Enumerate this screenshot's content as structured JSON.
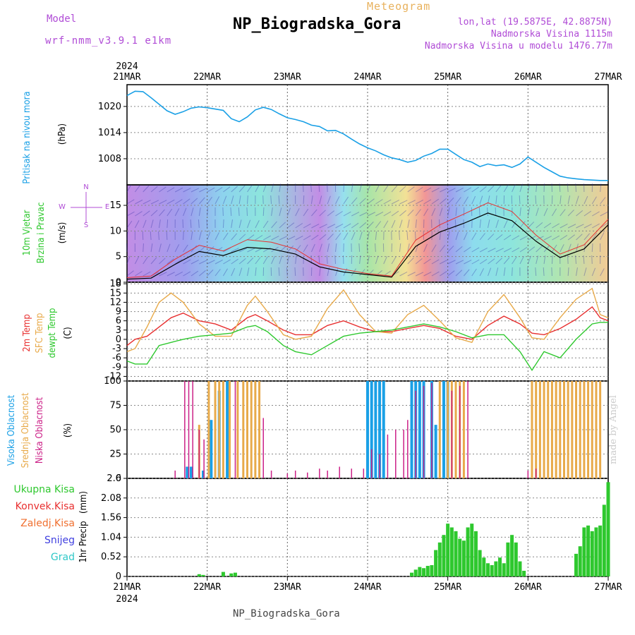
{
  "header": {
    "model_label": "Model",
    "model_name": "wrf-nmm_v3.9.1 e1km",
    "chart_type": "Meteogram",
    "station": "NP_Biogradska_Gora",
    "coords": "lon,lat (19.5875E, 42.8875N)",
    "altitude": "Nadmorska Visina 1115m",
    "model_altitude": "Nadmorska Visina u modelu 1476.77m",
    "footer": "NP_Biogradska_Gora",
    "credit": "made by Angel",
    "year": "2024"
  },
  "chart_data": [
    {
      "type": "line",
      "panel": "pressure",
      "ylabel": "Pritisak na nivou mora",
      "unit": "(hPa)",
      "x_ticks": [
        "21MAR",
        "22MAR",
        "23MAR",
        "24MAR",
        "25MAR",
        "26MAR",
        "27MAR"
      ],
      "yticks": [
        1008,
        1014,
        1020
      ],
      "ylim": [
        1002,
        1025
      ],
      "color": "#1aa0e6",
      "x": [
        0,
        0.1,
        0.2,
        0.3,
        0.5,
        0.6,
        0.7,
        0.8,
        0.9,
        1.0,
        1.2,
        1.3,
        1.4,
        1.5,
        1.6,
        1.7,
        1.8,
        1.9,
        2.0,
        2.1,
        2.2,
        2.3,
        2.4,
        2.5,
        2.6,
        2.7,
        2.8,
        2.9,
        3.0,
        3.1,
        3.2,
        3.3,
        3.4,
        3.5,
        3.6,
        3.7,
        3.8,
        3.9,
        4.0,
        4.1,
        4.2,
        4.3,
        4.4,
        4.5,
        4.6,
        4.7,
        4.8,
        4.9,
        5.0,
        5.1,
        5.2,
        5.3,
        5.4,
        5.5,
        5.6,
        5.7,
        5.8,
        5.9,
        6.0
      ],
      "y": [
        1022.5,
        1023.5,
        1023.4,
        1022.0,
        1019.0,
        1018.2,
        1018.8,
        1019.6,
        1019.9,
        1019.7,
        1019.1,
        1017.2,
        1016.5,
        1017.6,
        1019.2,
        1019.8,
        1019.3,
        1018.3,
        1017.4,
        1017.0,
        1016.5,
        1015.7,
        1015.4,
        1014.4,
        1014.5,
        1013.7,
        1012.5,
        1011.4,
        1010.5,
        1009.8,
        1008.9,
        1008.2,
        1007.8,
        1007.2,
        1007.6,
        1008.6,
        1009.2,
        1010.2,
        1010.2,
        1009.0,
        1007.8,
        1007.2,
        1006.2,
        1006.8,
        1006.4,
        1006.6,
        1006.0,
        1006.8,
        1008.4,
        1007.2,
        1006.0,
        1005.0,
        1004.0,
        1003.6,
        1003.4,
        1003.2,
        1003.1,
        1003.0,
        1003.0
      ]
    },
    {
      "type": "line",
      "panel": "wind",
      "ylabel": "10m Vjetar Brzina i Pravac",
      "unit": "(m/s)",
      "yticks": [
        0,
        5,
        10,
        15
      ],
      "ylim": [
        0,
        19
      ],
      "compass": {
        "n": "N",
        "s": "S",
        "e": "E",
        "w": "W"
      },
      "series": [
        {
          "color": "#000000",
          "x": [
            0,
            0.3,
            0.6,
            0.9,
            1.2,
            1.5,
            1.8,
            2.1,
            2.4,
            2.7,
            3.0,
            3.3,
            3.6,
            3.9,
            4.2,
            4.5,
            4.8,
            5.1,
            5.4,
            5.7,
            6.0
          ],
          "y": [
            0.6,
            0.8,
            3.5,
            6.0,
            5.2,
            6.8,
            6.5,
            5.5,
            3.0,
            2.0,
            1.5,
            1.0,
            7.0,
            9.8,
            11.5,
            13.5,
            12.0,
            8.0,
            4.8,
            6.5,
            11.2
          ]
        },
        {
          "color": "#e83030",
          "x": [
            0,
            0.3,
            0.6,
            0.9,
            1.2,
            1.5,
            1.8,
            2.1,
            2.4,
            2.7,
            3.0,
            3.3,
            3.6,
            3.9,
            4.2,
            4.5,
            4.8,
            5.1,
            5.4,
            5.7,
            6.0
          ],
          "y": [
            0.9,
            1.2,
            4.5,
            7.2,
            6.1,
            8.3,
            7.8,
            6.5,
            3.6,
            2.5,
            1.7,
            1.2,
            8.2,
            11.2,
            13.3,
            15.5,
            13.8,
            9.2,
            5.5,
            7.3,
            12.3
          ]
        }
      ]
    },
    {
      "type": "line",
      "panel": "temperature",
      "ylabel_lines": [
        "2m Temp",
        "SFC Temp",
        "dewpt Temp"
      ],
      "unit": "(C)",
      "yticks": [
        -12,
        -9,
        -6,
        -3,
        0,
        3,
        6,
        9,
        12,
        15,
        18
      ],
      "ylim": [
        -13.5,
        18.5
      ],
      "series": [
        {
          "name": "2m Temp",
          "color": "#e83030",
          "x": [
            0,
            0.1,
            0.25,
            0.4,
            0.55,
            0.7,
            0.9,
            1.1,
            1.3,
            1.5,
            1.6,
            1.75,
            1.95,
            2.1,
            2.3,
            2.5,
            2.7,
            2.9,
            3.1,
            3.3,
            3.5,
            3.7,
            3.9,
            4.1,
            4.3,
            4.5,
            4.7,
            4.9,
            5.05,
            5.2,
            5.4,
            5.6,
            5.8,
            5.9,
            6.0
          ],
          "y": [
            -2,
            0,
            1,
            4,
            7,
            8.5,
            6,
            5,
            3,
            7,
            8,
            6,
            3,
            1.5,
            1.5,
            4.5,
            6,
            4,
            2.5,
            2.5,
            3.5,
            4.5,
            3.5,
            1,
            0,
            4.5,
            7.5,
            5,
            2,
            1.5,
            3.5,
            6.5,
            10.5,
            7,
            6
          ]
        },
        {
          "name": "SFC Temp",
          "color": "#e8aa4a",
          "x": [
            0,
            0.1,
            0.25,
            0.4,
            0.55,
            0.7,
            0.9,
            1.1,
            1.3,
            1.5,
            1.6,
            1.75,
            1.95,
            2.1,
            2.3,
            2.5,
            2.7,
            2.9,
            3.1,
            3.3,
            3.5,
            3.7,
            3.9,
            4.1,
            4.3,
            4.5,
            4.7,
            4.9,
            5.05,
            5.2,
            5.4,
            5.6,
            5.8,
            5.9,
            6.0
          ],
          "y": [
            -4,
            -3,
            4,
            12,
            15,
            12,
            5,
            1,
            1,
            11,
            14,
            9,
            1.5,
            0,
            1,
            10,
            16,
            8,
            2.5,
            2,
            8,
            11,
            6,
            0.5,
            -1,
            9,
            14.5,
            7,
            0.5,
            0,
            7,
            13,
            16.5,
            8,
            7
          ]
        },
        {
          "name": "dewpt Temp",
          "color": "#2ec82e",
          "x": [
            0,
            0.1,
            0.25,
            0.4,
            0.55,
            0.7,
            0.9,
            1.1,
            1.3,
            1.5,
            1.6,
            1.75,
            1.95,
            2.1,
            2.3,
            2.5,
            2.7,
            2.9,
            3.1,
            3.3,
            3.5,
            3.7,
            3.9,
            4.1,
            4.3,
            4.5,
            4.7,
            4.9,
            5.05,
            5.2,
            5.4,
            5.6,
            5.8,
            5.9,
            6.0
          ],
          "y": [
            -7,
            -8,
            -8,
            -2,
            -1,
            0,
            1,
            1.5,
            2,
            4,
            4.5,
            2.5,
            -2,
            -4,
            -5,
            -2,
            1,
            2,
            2.5,
            3,
            4,
            5,
            4,
            2.5,
            0.5,
            1.5,
            1.5,
            -4,
            -10,
            -4,
            -6,
            0,
            5,
            5.5,
            5.5
          ]
        }
      ]
    },
    {
      "type": "bar",
      "panel": "cloud",
      "ylabel_lines": [
        "Visoka Oblacnost",
        "Srednja Oblacnost",
        "Niska Oblacnost"
      ],
      "unit": "(%)",
      "yticks": [
        0,
        25,
        50,
        75,
        100
      ],
      "ylim": [
        0,
        100
      ],
      "series": [
        {
          "name": "Visoka Oblacnost",
          "color": "#1aa0e6",
          "x": [
            0.75,
            0.8,
            0.95,
            1.05,
            1.15,
            1.25,
            3.0,
            3.05,
            3.1,
            3.15,
            3.2,
            3.55,
            3.6,
            3.65,
            3.7,
            3.8,
            3.85,
            3.95,
            4.0
          ],
          "values": [
            12,
            12,
            8,
            60,
            90,
            100,
            100,
            100,
            100,
            100,
            100,
            100,
            100,
            100,
            100,
            100,
            55,
            100,
            100
          ]
        },
        {
          "name": "Srednja Oblacnost",
          "color": "#e8aa4a",
          "x": [
            0.9,
            1.02,
            1.1,
            1.15,
            1.2,
            1.28,
            1.38,
            1.45,
            1.5,
            1.55,
            1.6,
            1.65,
            3.9,
            4.0,
            4.05,
            4.1,
            4.15,
            4.2,
            5.05,
            5.1,
            5.15,
            5.2,
            5.25,
            5.3,
            5.35,
            5.4,
            5.45,
            5.5,
            5.55,
            5.6,
            5.65,
            5.7,
            5.75,
            5.8,
            5.85,
            5.9
          ],
          "values": [
            55,
            100,
            100,
            100,
            100,
            100,
            100,
            100,
            100,
            100,
            100,
            100,
            100,
            100,
            100,
            100,
            100,
            100,
            100,
            100,
            100,
            100,
            100,
            100,
            100,
            100,
            100,
            100,
            100,
            100,
            100,
            100,
            100,
            100,
            100,
            100
          ]
        },
        {
          "name": "Niska Oblacnost",
          "color": "#cc2288",
          "x": [
            0.6,
            0.72,
            0.77,
            0.82,
            0.9,
            0.96,
            1.35,
            1.7,
            1.8,
            2.0,
            2.1,
            2.25,
            2.4,
            2.5,
            2.65,
            2.8,
            2.95,
            3.05,
            3.15,
            3.25,
            3.35,
            3.45,
            3.5,
            3.6,
            3.7,
            3.8,
            4.05,
            4.15,
            4.25,
            5.0,
            5.1
          ],
          "values": [
            8,
            100,
            100,
            100,
            50,
            40,
            100,
            62,
            8,
            5,
            8,
            6,
            10,
            8,
            12,
            10,
            10,
            30,
            25,
            45,
            50,
            50,
            60,
            90,
            95,
            98,
            90,
            95,
            100,
            8,
            10
          ]
        }
      ]
    },
    {
      "type": "bar",
      "panel": "precip",
      "ylabel": "1hr Precip",
      "unit": "(mm)",
      "legend": [
        {
          "label": "Ukupna Kisa",
          "color": "#2ec82e"
        },
        {
          "label": "Konvek.Kisa",
          "color": "#e83030"
        },
        {
          "label": "Zaledj.Kisa",
          "color": "#f07030"
        },
        {
          "label": "Snijeg",
          "color": "#4040e0"
        },
        {
          "label": "Grad",
          "color": "#30c8c8"
        }
      ],
      "yticks": [
        0,
        0.52,
        1.04,
        1.56,
        2.08,
        2.6
      ],
      "ylim": [
        0,
        2.6
      ],
      "x": [
        0.9,
        0.95,
        1.2,
        1.3,
        1.35,
        3.55,
        3.6,
        3.65,
        3.7,
        3.75,
        3.8,
        3.85,
        3.9,
        3.95,
        4.0,
        4.05,
        4.1,
        4.15,
        4.2,
        4.25,
        4.3,
        4.35,
        4.4,
        4.45,
        4.5,
        4.55,
        4.6,
        4.65,
        4.7,
        4.75,
        4.8,
        4.85,
        4.9,
        4.95,
        5.6,
        5.65,
        5.7,
        5.75,
        5.8,
        5.85,
        5.9,
        5.95,
        6.0
      ],
      "values": [
        0.06,
        0.04,
        0.12,
        0.08,
        0.1,
        0.1,
        0.18,
        0.25,
        0.22,
        0.28,
        0.3,
        0.7,
        0.9,
        1.1,
        1.4,
        1.3,
        1.2,
        1.0,
        0.95,
        1.3,
        1.4,
        1.2,
        0.7,
        0.5,
        0.35,
        0.3,
        0.4,
        0.5,
        0.35,
        0.9,
        1.1,
        0.9,
        0.4,
        0.15,
        0.6,
        0.8,
        1.3,
        1.35,
        1.2,
        1.3,
        1.35,
        1.9,
        2.5
      ]
    }
  ]
}
